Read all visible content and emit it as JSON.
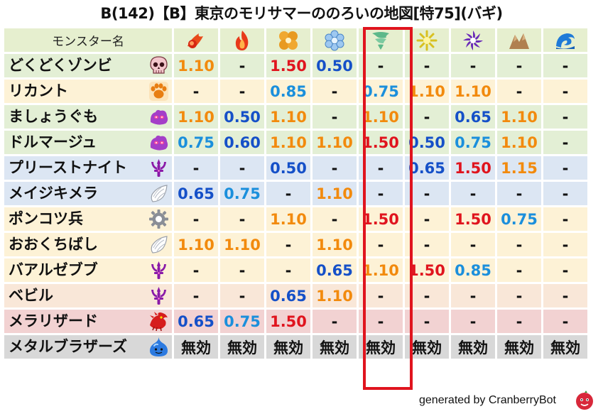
{
  "title": "B(142)【B】東京のモリサマーののろいの地図[特75](バギ)",
  "footer": "generated by CranberryBot",
  "colors": {
    "orange": "#f28a0d",
    "blue": "#1550c8",
    "skyblue": "#1b8fdc",
    "red": "#e0141e",
    "dash": "#111111",
    "highlight": "#e0141e"
  },
  "header": {
    "name_label": "モンスター名",
    "bg": "#e6efcf",
    "elements": [
      "fire-icon",
      "flame-icon",
      "earth-icon",
      "ice-icon",
      "wind-icon",
      "light-icon",
      "dark-icon",
      "rock-icon",
      "water-icon"
    ]
  },
  "rows": [
    {
      "name": "どくどくゾンビ",
      "type_icon": "skull-icon",
      "bg": "#e3efd5",
      "values": [
        {
          "t": "1.10",
          "c": "orange"
        },
        {
          "t": "-",
          "c": "dash"
        },
        {
          "t": "1.50",
          "c": "red"
        },
        {
          "t": "0.50",
          "c": "blue"
        },
        {
          "t": "-",
          "c": "dash"
        },
        {
          "t": "-",
          "c": "dash"
        },
        {
          "t": "-",
          "c": "dash"
        },
        {
          "t": "-",
          "c": "dash"
        },
        {
          "t": "-",
          "c": "dash"
        }
      ]
    },
    {
      "name": "リカント",
      "type_icon": "paw-icon",
      "bg": "#fdf2d6",
      "values": [
        {
          "t": "-",
          "c": "dash"
        },
        {
          "t": "-",
          "c": "dash"
        },
        {
          "t": "0.85",
          "c": "skyblue"
        },
        {
          "t": "-",
          "c": "dash"
        },
        {
          "t": "0.75",
          "c": "skyblue"
        },
        {
          "t": "1.10",
          "c": "orange"
        },
        {
          "t": "1.10",
          "c": "orange"
        },
        {
          "t": "-",
          "c": "dash"
        },
        {
          "t": "-",
          "c": "dash"
        }
      ]
    },
    {
      "name": "ましょうぐも",
      "type_icon": "slime-beast-icon",
      "bg": "#e3efd5",
      "values": [
        {
          "t": "1.10",
          "c": "orange"
        },
        {
          "t": "0.50",
          "c": "blue"
        },
        {
          "t": "1.10",
          "c": "orange"
        },
        {
          "t": "-",
          "c": "dash"
        },
        {
          "t": "1.10",
          "c": "orange"
        },
        {
          "t": "-",
          "c": "dash"
        },
        {
          "t": "0.65",
          "c": "blue"
        },
        {
          "t": "1.10",
          "c": "orange"
        },
        {
          "t": "-",
          "c": "dash"
        }
      ]
    },
    {
      "name": "ドルマージュ",
      "type_icon": "slime-beast-icon",
      "bg": "#e3efd5",
      "values": [
        {
          "t": "0.75",
          "c": "skyblue"
        },
        {
          "t": "0.60",
          "c": "blue"
        },
        {
          "t": "1.10",
          "c": "orange"
        },
        {
          "t": "1.10",
          "c": "orange"
        },
        {
          "t": "1.50",
          "c": "red"
        },
        {
          "t": "0.50",
          "c": "blue"
        },
        {
          "t": "0.75",
          "c": "skyblue"
        },
        {
          "t": "1.10",
          "c": "orange"
        },
        {
          "t": "-",
          "c": "dash"
        }
      ]
    },
    {
      "name": "プリーストナイト",
      "type_icon": "demon-trident-icon",
      "bg": "#dce6f3",
      "values": [
        {
          "t": "-",
          "c": "dash"
        },
        {
          "t": "-",
          "c": "dash"
        },
        {
          "t": "0.50",
          "c": "blue"
        },
        {
          "t": "-",
          "c": "dash"
        },
        {
          "t": "-",
          "c": "dash"
        },
        {
          "t": "0.65",
          "c": "blue"
        },
        {
          "t": "1.50",
          "c": "red"
        },
        {
          "t": "1.15",
          "c": "orange"
        },
        {
          "t": "-",
          "c": "dash"
        }
      ]
    },
    {
      "name": "メイジキメラ",
      "type_icon": "wing-icon",
      "bg": "#dce6f3",
      "values": [
        {
          "t": "0.65",
          "c": "blue"
        },
        {
          "t": "0.75",
          "c": "skyblue"
        },
        {
          "t": "-",
          "c": "dash"
        },
        {
          "t": "1.10",
          "c": "orange"
        },
        {
          "t": "-",
          "c": "dash"
        },
        {
          "t": "-",
          "c": "dash"
        },
        {
          "t": "-",
          "c": "dash"
        },
        {
          "t": "-",
          "c": "dash"
        },
        {
          "t": "-",
          "c": "dash"
        }
      ]
    },
    {
      "name": "ポンコツ兵",
      "type_icon": "gear-icon",
      "bg": "#fdf2d6",
      "values": [
        {
          "t": "-",
          "c": "dash"
        },
        {
          "t": "-",
          "c": "dash"
        },
        {
          "t": "1.10",
          "c": "orange"
        },
        {
          "t": "-",
          "c": "dash"
        },
        {
          "t": "1.50",
          "c": "red"
        },
        {
          "t": "-",
          "c": "dash"
        },
        {
          "t": "1.50",
          "c": "red"
        },
        {
          "t": "0.75",
          "c": "skyblue"
        },
        {
          "t": "-",
          "c": "dash"
        }
      ]
    },
    {
      "name": "おおくちばし",
      "type_icon": "wing-icon",
      "bg": "#fdf2d6",
      "values": [
        {
          "t": "1.10",
          "c": "orange"
        },
        {
          "t": "1.10",
          "c": "orange"
        },
        {
          "t": "-",
          "c": "dash"
        },
        {
          "t": "1.10",
          "c": "orange"
        },
        {
          "t": "-",
          "c": "dash"
        },
        {
          "t": "-",
          "c": "dash"
        },
        {
          "t": "-",
          "c": "dash"
        },
        {
          "t": "-",
          "c": "dash"
        },
        {
          "t": "-",
          "c": "dash"
        }
      ]
    },
    {
      "name": "バアルゼブブ",
      "type_icon": "demon-trident-icon",
      "bg": "#fdf2d6",
      "values": [
        {
          "t": "-",
          "c": "dash"
        },
        {
          "t": "-",
          "c": "dash"
        },
        {
          "t": "-",
          "c": "dash"
        },
        {
          "t": "0.65",
          "c": "blue"
        },
        {
          "t": "1.10",
          "c": "orange"
        },
        {
          "t": "1.50",
          "c": "red"
        },
        {
          "t": "0.85",
          "c": "skyblue"
        },
        {
          "t": "-",
          "c": "dash"
        },
        {
          "t": "-",
          "c": "dash"
        }
      ]
    },
    {
      "name": "ベビル",
      "type_icon": "demon-trident-icon",
      "bg": "#f9e7d8",
      "values": [
        {
          "t": "-",
          "c": "dash"
        },
        {
          "t": "-",
          "c": "dash"
        },
        {
          "t": "0.65",
          "c": "blue"
        },
        {
          "t": "1.10",
          "c": "orange"
        },
        {
          "t": "-",
          "c": "dash"
        },
        {
          "t": "-",
          "c": "dash"
        },
        {
          "t": "-",
          "c": "dash"
        },
        {
          "t": "-",
          "c": "dash"
        },
        {
          "t": "-",
          "c": "dash"
        }
      ]
    },
    {
      "name": "メラリザード",
      "type_icon": "dragon-icon",
      "bg": "#f2d2d2",
      "values": [
        {
          "t": "0.65",
          "c": "blue"
        },
        {
          "t": "0.75",
          "c": "skyblue"
        },
        {
          "t": "1.50",
          "c": "red"
        },
        {
          "t": "-",
          "c": "dash"
        },
        {
          "t": "-",
          "c": "dash"
        },
        {
          "t": "-",
          "c": "dash"
        },
        {
          "t": "-",
          "c": "dash"
        },
        {
          "t": "-",
          "c": "dash"
        },
        {
          "t": "-",
          "c": "dash"
        }
      ]
    },
    {
      "name": "メタルブラザーズ",
      "type_icon": "slime-icon",
      "bg": "#d8d8d8",
      "values": [
        {
          "t": "無効",
          "c": "dash"
        },
        {
          "t": "無効",
          "c": "dash"
        },
        {
          "t": "無効",
          "c": "dash"
        },
        {
          "t": "無効",
          "c": "dash"
        },
        {
          "t": "無効",
          "c": "dash"
        },
        {
          "t": "無効",
          "c": "dash"
        },
        {
          "t": "無効",
          "c": "dash"
        },
        {
          "t": "無効",
          "c": "dash"
        },
        {
          "t": "無効",
          "c": "dash"
        }
      ]
    }
  ]
}
